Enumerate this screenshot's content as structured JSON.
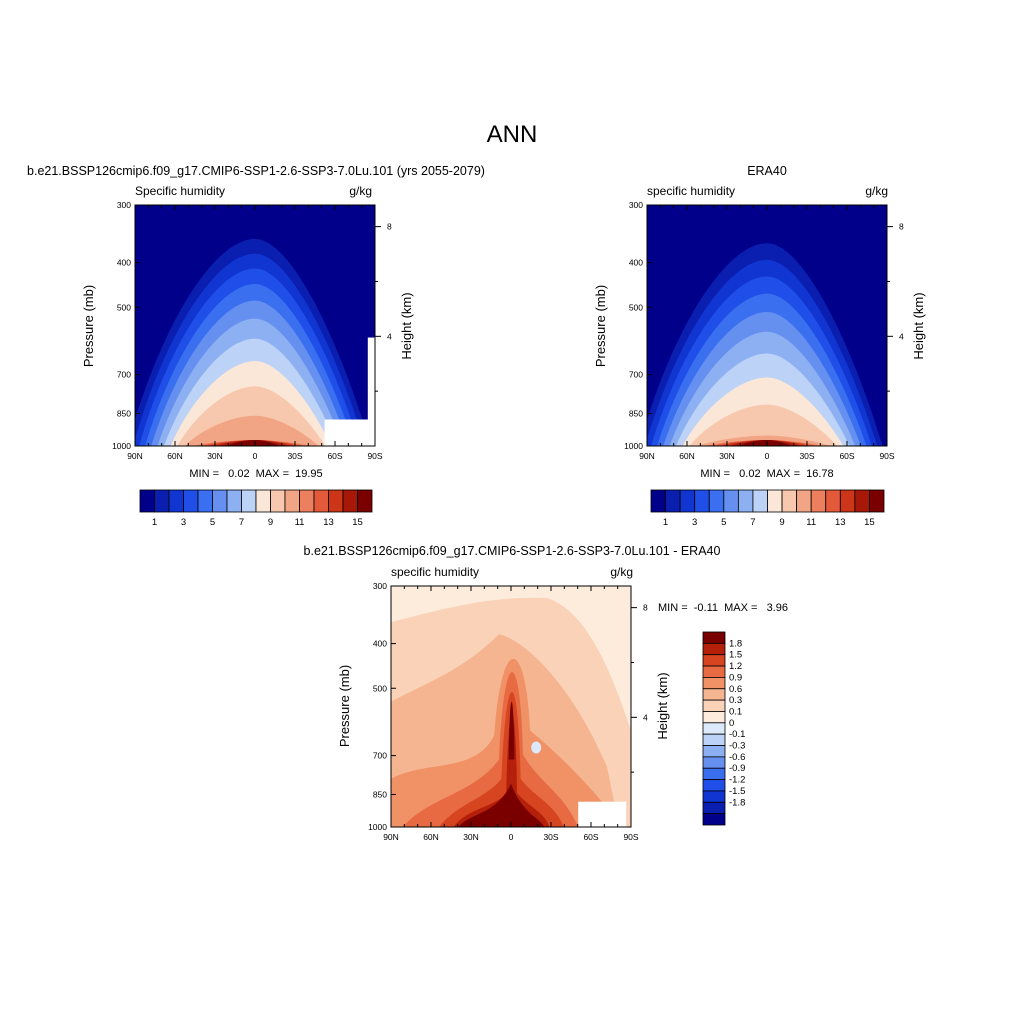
{
  "figure": {
    "title": "ANN"
  },
  "chart_data": [
    {
      "type": "heatmap",
      "panel_title": "b.e21.BSSP126cmip6.f09_g17.CMIP6-SSP1-2.6-SSP3-7.0Lu.101 (yrs 2055-2079)",
      "subtitle_left": "Specific humidity",
      "subtitle_right": "g/kg",
      "ylabel": "Pressure (mb)",
      "ylabel_right": "Height (km)",
      "x_ticks": [
        "90N",
        "60N",
        "30N",
        "0",
        "30S",
        "60S",
        "90S"
      ],
      "y_ticks": [
        "300",
        "400",
        "500",
        "700",
        "850",
        "1000"
      ],
      "y_ticks_right": [
        "8",
        "4"
      ],
      "xlim": [
        90,
        -90
      ],
      "ylim": [
        1000,
        300
      ],
      "y_scale": "log",
      "stats": "MIN =   0.02  MAX =  19.95",
      "colorbar_labels": [
        "1",
        "3",
        "5",
        "7",
        "9",
        "11",
        "13",
        "15"
      ],
      "colorbar_position": "bottom",
      "peak_value": 19.95,
      "min_value": 0.02
    },
    {
      "type": "heatmap",
      "panel_title": "ERA40",
      "subtitle_left": "specific humidity",
      "subtitle_right": "g/kg",
      "ylabel": "Pressure (mb)",
      "ylabel_right": "Height (km)",
      "x_ticks": [
        "90N",
        "60N",
        "30N",
        "0",
        "30S",
        "60S",
        "90S"
      ],
      "y_ticks": [
        "300",
        "400",
        "500",
        "700",
        "850",
        "1000"
      ],
      "y_ticks_right": [
        "8",
        "4"
      ],
      "xlim": [
        90,
        -90
      ],
      "ylim": [
        1000,
        300
      ],
      "y_scale": "log",
      "stats": "MIN =   0.02  MAX =  16.78",
      "colorbar_labels": [
        "1",
        "3",
        "5",
        "7",
        "9",
        "11",
        "13",
        "15"
      ],
      "colorbar_position": "bottom",
      "peak_value": 16.78,
      "min_value": 0.02
    },
    {
      "type": "heatmap",
      "panel_title": "b.e21.BSSP126cmip6.f09_g17.CMIP6-SSP1-2.6-SSP3-7.0Lu.101 - ERA40",
      "subtitle_left": "specific humidity",
      "subtitle_right": "g/kg",
      "ylabel": "Pressure (mb)",
      "ylabel_right": "Height (km)",
      "x_ticks": [
        "90N",
        "60N",
        "30N",
        "0",
        "30S",
        "60S",
        "90S"
      ],
      "y_ticks": [
        "300",
        "400",
        "500",
        "700",
        "850",
        "1000"
      ],
      "y_ticks_right": [
        "8",
        "4"
      ],
      "xlim": [
        90,
        -90
      ],
      "ylim": [
        1000,
        300
      ],
      "y_scale": "log",
      "stats": "MIN =  -0.11  MAX =   3.96",
      "colorbar_labels": [
        "1.8",
        "1.5",
        "1.2",
        "0.9",
        "0.6",
        "0.3",
        "0.1",
        "0",
        "-0.1",
        "-0.3",
        "-0.6",
        "-0.9",
        "-1.2",
        "-1.5",
        "-1.8"
      ],
      "colorbar_position": "right",
      "peak_value": 3.96,
      "min_value": -0.11
    }
  ],
  "colors": {
    "abs_levels": [
      "#00008b",
      "#0a1fb0",
      "#1035d0",
      "#1f4fe8",
      "#3a6ff0",
      "#6690f0",
      "#8db0f2",
      "#bcd2f7",
      "#fbe7d8",
      "#f7c8ad",
      "#f2a584",
      "#ec7f5e",
      "#e25a3a",
      "#cc3518",
      "#a81808",
      "#7a0000"
    ],
    "diff_levels": [
      "#00008b",
      "#0a1fb0",
      "#1035d0",
      "#1f4fe8",
      "#3a6ff0",
      "#6690f0",
      "#8db0f2",
      "#bcd2f7",
      "#dce9fb",
      "#fdebdc",
      "#f9d2b8",
      "#f5b590",
      "#f09166",
      "#e76a42",
      "#d64420",
      "#b5200a",
      "#7a0000"
    ]
  }
}
